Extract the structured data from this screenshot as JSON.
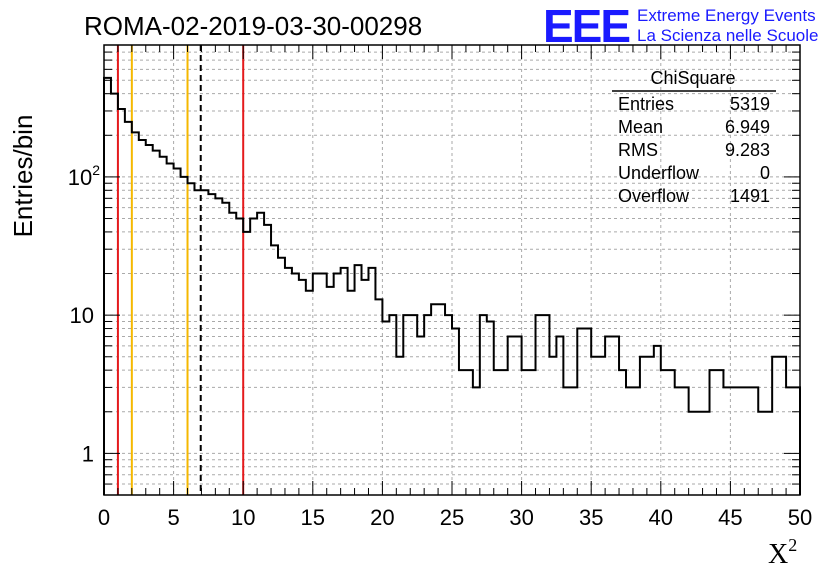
{
  "title": "ROMA-02-2019-03-30-00298",
  "logo": {
    "mark": "EEE",
    "line1": "Extreme Energy Events",
    "line2": "La Scienza nelle Scuole",
    "color": "#1a1aff"
  },
  "stats": {
    "name": "ChiSquare",
    "rows": [
      {
        "label": "Entries",
        "value": "5319"
      },
      {
        "label": "Mean",
        "value": "6.949"
      },
      {
        "label": "RMS",
        "value": "9.283"
      },
      {
        "label": "Underflow",
        "value": "0"
      },
      {
        "label": "Overflow",
        "value": "1491"
      }
    ]
  },
  "chart_data": {
    "type": "histogram",
    "xlabel": "X",
    "xlabel_sup": "2",
    "ylabel": "Entries/bin",
    "xlim": [
      0,
      50
    ],
    "ylim": [
      0.5,
      900
    ],
    "y_scale": "log",
    "grid": true,
    "bin_width": 0.5,
    "x_ticks": [
      "0",
      "5",
      "10",
      "15",
      "20",
      "25",
      "30",
      "35",
      "40",
      "45",
      "50"
    ],
    "y_tick_labels": [
      {
        "value": 1,
        "label": "1"
      },
      {
        "value": 10,
        "label": "10"
      },
      {
        "value": 100,
        "label": "10",
        "sup": "2"
      }
    ],
    "values": [
      520,
      400,
      310,
      250,
      210,
      185,
      170,
      155,
      140,
      125,
      115,
      100,
      90,
      80,
      80,
      75,
      70,
      65,
      55,
      50,
      40,
      50,
      55,
      45,
      32,
      26,
      22,
      20,
      18,
      15,
      20,
      20,
      16,
      20,
      22,
      15,
      23,
      18,
      22,
      13,
      9,
      10,
      5,
      10,
      10,
      7,
      10,
      12,
      12,
      10,
      8,
      4,
      4,
      3,
      10,
      9,
      4,
      4,
      7,
      7,
      4,
      4,
      10,
      10,
      5,
      7,
      3,
      3,
      8,
      8,
      5,
      5,
      7,
      7,
      4,
      3,
      3,
      5,
      5,
      6,
      4,
      4,
      3,
      3,
      2,
      2,
      2,
      4,
      4,
      3,
      3,
      3,
      3,
      3,
      2,
      2,
      5,
      5,
      3,
      3
    ],
    "lines": [
      {
        "x": 1,
        "color": "#e41a1c",
        "style": "solid"
      },
      {
        "x": 2,
        "color": "#f5b800",
        "style": "solid"
      },
      {
        "x": 6,
        "color": "#f5b800",
        "style": "solid"
      },
      {
        "x": 6.949,
        "color": "#000000",
        "style": "dashed"
      },
      {
        "x": 10,
        "color": "#e41a1c",
        "style": "solid"
      }
    ]
  }
}
